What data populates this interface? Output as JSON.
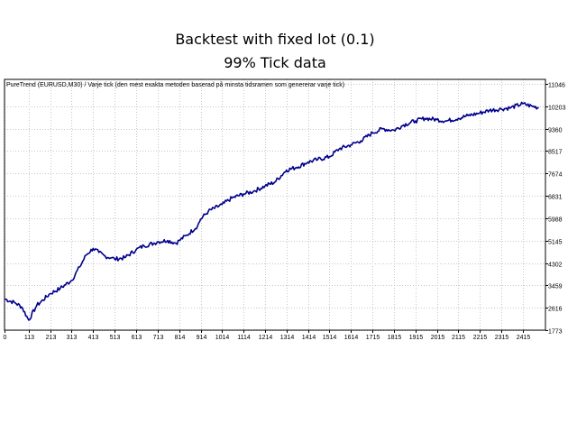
{
  "header": {
    "title": "Backtest with fixed lot (0.1)",
    "subtitle": "99% Tick data"
  },
  "chart_data": {
    "type": "line",
    "title": "Backtest with fixed lot (0.1)",
    "subtitle": "99% Tick data",
    "caption": "PureTrend (EURUSD,M30) / Varje tick (den mest exakta metoden baserad på minsta tidsramen som genererar varje tick)",
    "xlabel": "",
    "ylabel": "",
    "grid": true,
    "legend": "none",
    "colors": {
      "line": "#00008b",
      "grid": "#c6c6c6",
      "frame": "#000000"
    },
    "x_ticks": [
      0,
      113,
      213,
      313,
      413,
      513,
      613,
      713,
      814,
      914,
      1014,
      1114,
      1214,
      1314,
      1414,
      1514,
      1614,
      1715,
      1815,
      1915,
      2015,
      2115,
      2215,
      2315,
      2415
    ],
    "y_ticks": [
      1773,
      2616,
      3459,
      4302,
      5145,
      5988,
      6831,
      7674,
      8517,
      9360,
      10203,
      11046
    ],
    "xlim": [
      0,
      2500
    ],
    "ylim": [
      1773,
      11046
    ],
    "series": [
      {
        "x": [
          0,
          50,
          80,
          113,
          150,
          213,
          260,
          313,
          350,
          380,
          413,
          440,
          470,
          500,
          513,
          560,
          613,
          650,
          700,
          713,
          760,
          800,
          814,
          850,
          900,
          914,
          950,
          1014,
          1060,
          1114,
          1160,
          1214,
          1260,
          1314,
          1360,
          1414,
          1460,
          1514,
          1560,
          1614,
          1660,
          1715,
          1760,
          1815,
          1860,
          1915,
          1960,
          2015,
          2060,
          2115,
          2160,
          2215,
          2260,
          2315,
          2360,
          2415,
          2460,
          2490
        ],
        "values": [
          2950,
          2800,
          2650,
          2150,
          2700,
          3150,
          3350,
          3650,
          4150,
          4600,
          4850,
          4700,
          4550,
          4500,
          4450,
          4500,
          4800,
          4950,
          5050,
          5100,
          5150,
          5050,
          5150,
          5350,
          5700,
          5950,
          6250,
          6500,
          6750,
          6900,
          7000,
          7200,
          7350,
          7800,
          7900,
          8100,
          8200,
          8300,
          8600,
          8750,
          8900,
          9200,
          9350,
          9300,
          9500,
          9650,
          9750,
          9700,
          9650,
          9750,
          9850,
          9950,
          10050,
          10100,
          10150,
          10300,
          10200,
          10150
        ]
      }
    ]
  }
}
